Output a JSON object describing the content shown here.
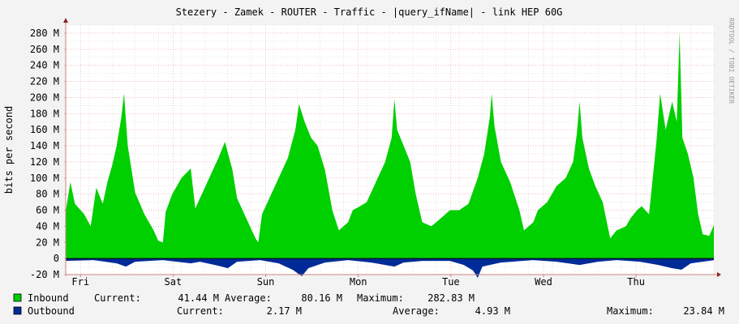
{
  "chart_data": {
    "type": "area",
    "title": "Stezery - Zamek - ROUTER - Traffic - |query_ifName| - link HEP 60G",
    "ylabel": "bits per second",
    "watermark": "RRDTOOL / TOBI OETIKER",
    "ylim": [
      -20000000,
      290000000
    ],
    "y_ticks": [
      {
        "value": -20000000,
        "label": "-20 M"
      },
      {
        "value": 0,
        "label": "0"
      },
      {
        "value": 20000000,
        "label": "20 M"
      },
      {
        "value": 40000000,
        "label": "40 M"
      },
      {
        "value": 60000000,
        "label": "60 M"
      },
      {
        "value": 80000000,
        "label": "80 M"
      },
      {
        "value": 100000000,
        "label": "100 M"
      },
      {
        "value": 120000000,
        "label": "120 M"
      },
      {
        "value": 140000000,
        "label": "140 M"
      },
      {
        "value": 160000000,
        "label": "160 M"
      },
      {
        "value": 180000000,
        "label": "180 M"
      },
      {
        "value": 200000000,
        "label": "200 M"
      },
      {
        "value": 220000000,
        "label": "220 M"
      },
      {
        "value": 240000000,
        "label": "240 M"
      },
      {
        "value": 260000000,
        "label": "260 M"
      },
      {
        "value": 280000000,
        "label": "280 M"
      }
    ],
    "x_range_days": [
      0,
      7
    ],
    "x_ticks": [
      {
        "day": 0.16,
        "label": "Fri"
      },
      {
        "day": 1.16,
        "label": "Sat"
      },
      {
        "day": 2.16,
        "label": "Sun"
      },
      {
        "day": 3.16,
        "label": "Mon"
      },
      {
        "day": 4.16,
        "label": "Tue"
      },
      {
        "day": 5.16,
        "label": "Wed"
      },
      {
        "day": 6.16,
        "label": "Thu"
      }
    ],
    "series": [
      {
        "name": "Inbound",
        "color": "#00cf00",
        "stats": {
          "current": "41.44 M",
          "average": "80.16 M",
          "maximum": "282.83 M"
        },
        "points": [
          [
            0.0,
            58000000
          ],
          [
            0.05,
            95000000
          ],
          [
            0.1,
            68000000
          ],
          [
            0.2,
            55000000
          ],
          [
            0.27,
            40000000
          ],
          [
            0.33,
            88000000
          ],
          [
            0.4,
            68000000
          ],
          [
            0.45,
            95000000
          ],
          [
            0.5,
            115000000
          ],
          [
            0.55,
            140000000
          ],
          [
            0.6,
            175000000
          ],
          [
            0.63,
            205000000
          ],
          [
            0.67,
            140000000
          ],
          [
            0.75,
            82000000
          ],
          [
            0.85,
            55000000
          ],
          [
            0.95,
            35000000
          ],
          [
            1.0,
            22000000
          ],
          [
            1.05,
            20000000
          ],
          [
            1.08,
            58000000
          ],
          [
            1.15,
            80000000
          ],
          [
            1.25,
            100000000
          ],
          [
            1.35,
            112000000
          ],
          [
            1.4,
            62000000
          ],
          [
            1.45,
            75000000
          ],
          [
            1.55,
            100000000
          ],
          [
            1.65,
            125000000
          ],
          [
            1.72,
            145000000
          ],
          [
            1.8,
            110000000
          ],
          [
            1.85,
            75000000
          ],
          [
            1.95,
            50000000
          ],
          [
            2.05,
            25000000
          ],
          [
            2.08,
            20000000
          ],
          [
            2.12,
            55000000
          ],
          [
            2.2,
            75000000
          ],
          [
            2.3,
            100000000
          ],
          [
            2.4,
            125000000
          ],
          [
            2.48,
            160000000
          ],
          [
            2.52,
            192000000
          ],
          [
            2.58,
            170000000
          ],
          [
            2.65,
            150000000
          ],
          [
            2.72,
            140000000
          ],
          [
            2.8,
            110000000
          ],
          [
            2.88,
            60000000
          ],
          [
            2.95,
            35000000
          ],
          [
            3.05,
            45000000
          ],
          [
            3.1,
            60000000
          ],
          [
            3.18,
            65000000
          ],
          [
            3.25,
            70000000
          ],
          [
            3.35,
            95000000
          ],
          [
            3.45,
            120000000
          ],
          [
            3.52,
            150000000
          ],
          [
            3.55,
            198000000
          ],
          [
            3.58,
            160000000
          ],
          [
            3.65,
            140000000
          ],
          [
            3.72,
            120000000
          ],
          [
            3.78,
            80000000
          ],
          [
            3.85,
            45000000
          ],
          [
            3.95,
            40000000
          ],
          [
            4.05,
            50000000
          ],
          [
            4.15,
            60000000
          ],
          [
            4.25,
            60000000
          ],
          [
            4.35,
            68000000
          ],
          [
            4.45,
            100000000
          ],
          [
            4.52,
            130000000
          ],
          [
            4.58,
            175000000
          ],
          [
            4.6,
            205000000
          ],
          [
            4.63,
            165000000
          ],
          [
            4.7,
            120000000
          ],
          [
            4.8,
            95000000
          ],
          [
            4.9,
            60000000
          ],
          [
            4.95,
            35000000
          ],
          [
            5.05,
            45000000
          ],
          [
            5.1,
            60000000
          ],
          [
            5.2,
            70000000
          ],
          [
            5.3,
            90000000
          ],
          [
            5.4,
            100000000
          ],
          [
            5.48,
            120000000
          ],
          [
            5.52,
            155000000
          ],
          [
            5.55,
            195000000
          ],
          [
            5.58,
            150000000
          ],
          [
            5.65,
            112000000
          ],
          [
            5.72,
            90000000
          ],
          [
            5.8,
            70000000
          ],
          [
            5.88,
            25000000
          ],
          [
            5.95,
            35000000
          ],
          [
            6.05,
            40000000
          ],
          [
            6.1,
            50000000
          ],
          [
            6.17,
            60000000
          ],
          [
            6.22,
            65000000
          ],
          [
            6.3,
            55000000
          ],
          [
            6.38,
            145000000
          ],
          [
            6.42,
            205000000
          ],
          [
            6.48,
            160000000
          ],
          [
            6.55,
            195000000
          ],
          [
            6.6,
            170000000
          ],
          [
            6.63,
            280000000
          ],
          [
            6.66,
            150000000
          ],
          [
            6.72,
            130000000
          ],
          [
            6.78,
            100000000
          ],
          [
            6.83,
            55000000
          ],
          [
            6.88,
            30000000
          ],
          [
            6.95,
            28000000
          ],
          [
            7.0,
            41440000
          ]
        ]
      },
      {
        "name": "Outbound",
        "color": "#002a97",
        "stats": {
          "current": "2.17 M",
          "average": "4.93 M",
          "maximum": "23.84 M"
        },
        "points": [
          [
            0.0,
            -3000000
          ],
          [
            0.3,
            -2000000
          ],
          [
            0.55,
            -6000000
          ],
          [
            0.65,
            -10000000
          ],
          [
            0.75,
            -4000000
          ],
          [
            1.05,
            -2000000
          ],
          [
            1.35,
            -6000000
          ],
          [
            1.45,
            -4000000
          ],
          [
            1.65,
            -9000000
          ],
          [
            1.75,
            -12000000
          ],
          [
            1.85,
            -4000000
          ],
          [
            2.1,
            -2000000
          ],
          [
            2.3,
            -6000000
          ],
          [
            2.45,
            -14000000
          ],
          [
            2.55,
            -22000000
          ],
          [
            2.62,
            -12000000
          ],
          [
            2.8,
            -5000000
          ],
          [
            3.05,
            -2000000
          ],
          [
            3.3,
            -5000000
          ],
          [
            3.45,
            -8000000
          ],
          [
            3.55,
            -10000000
          ],
          [
            3.65,
            -5000000
          ],
          [
            3.85,
            -3000000
          ],
          [
            4.15,
            -3000000
          ],
          [
            4.3,
            -8000000
          ],
          [
            4.4,
            -15000000
          ],
          [
            4.45,
            -24000000
          ],
          [
            4.5,
            -10000000
          ],
          [
            4.7,
            -5000000
          ],
          [
            5.05,
            -2000000
          ],
          [
            5.3,
            -4000000
          ],
          [
            5.55,
            -8000000
          ],
          [
            5.75,
            -4000000
          ],
          [
            5.95,
            -2000000
          ],
          [
            6.2,
            -4000000
          ],
          [
            6.4,
            -8000000
          ],
          [
            6.55,
            -12000000
          ],
          [
            6.65,
            -14000000
          ],
          [
            6.75,
            -6000000
          ],
          [
            7.0,
            -2170000
          ]
        ]
      }
    ]
  },
  "legend": {
    "labels": {
      "current": "Current:",
      "average": "Average:",
      "maximum": "Maximum:"
    }
  }
}
